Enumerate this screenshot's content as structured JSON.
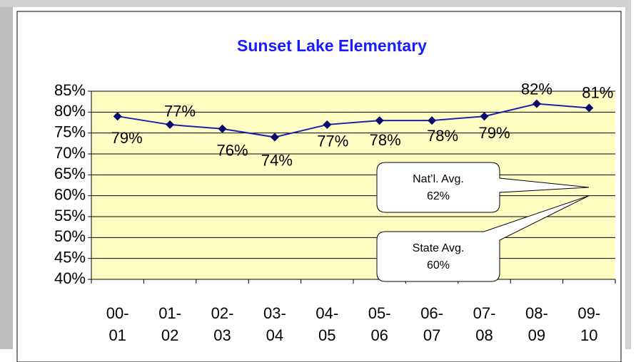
{
  "chart_data": {
    "type": "line",
    "title": "Sunset Lake Elementary",
    "categories": [
      "00-01",
      "01-02",
      "02-03",
      "03-04",
      "04-05",
      "05-06",
      "06-07",
      "07-08",
      "08-09",
      "09-10"
    ],
    "values": [
      79,
      77,
      76,
      74,
      77,
      78,
      78,
      79,
      82,
      81
    ],
    "value_labels": [
      "79%",
      "77%",
      "76%",
      "74%",
      "77%",
      "78%",
      "78%",
      "79%",
      "82%",
      "81%"
    ],
    "color": "#1f1fb0",
    "ylim": [
      40,
      85
    ],
    "yticks": [
      {
        "value": 40,
        "label": "40%"
      },
      {
        "value": 45,
        "label": "45%"
      },
      {
        "value": 50,
        "label": "50%"
      },
      {
        "value": 55,
        "label": "55%"
      },
      {
        "value": 60,
        "label": "60%"
      },
      {
        "value": 65,
        "label": "65%"
      },
      {
        "value": 70,
        "label": "70%"
      },
      {
        "value": 75,
        "label": "75%"
      },
      {
        "value": 80,
        "label": "80%"
      },
      {
        "value": 85,
        "label": "85%"
      }
    ],
    "grid": true,
    "annotations": [
      {
        "text": "Nat’l. Avg.",
        "value": 62,
        "value_label": "62%"
      },
      {
        "text": "State Avg.",
        "value": 60,
        "value_label": "60%"
      }
    ]
  }
}
